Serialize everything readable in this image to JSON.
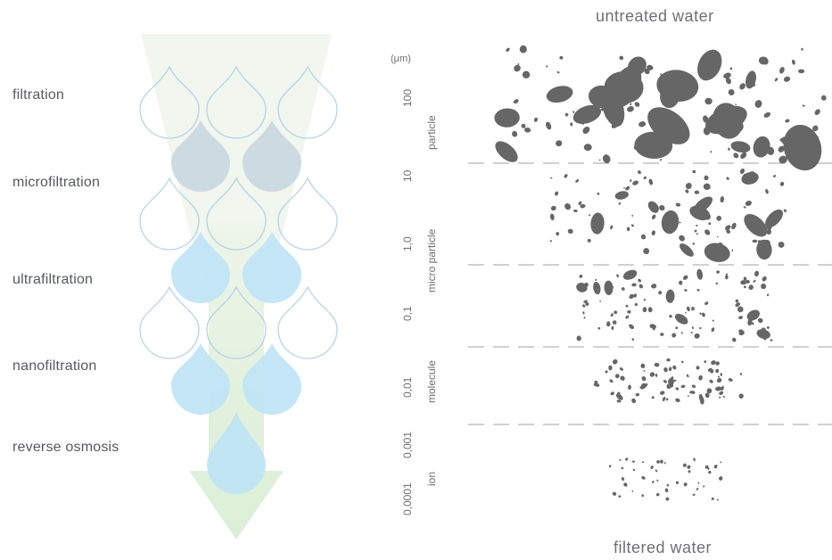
{
  "filtration_levels": [
    {
      "label": "filtration"
    },
    {
      "label": "microfiltration"
    },
    {
      "label": "ultrafiltration"
    },
    {
      "label": "nanofiltration"
    },
    {
      "label": "reverse osmosis"
    }
  ],
  "top_caption": "untreated water",
  "bottom_caption": "filtered water",
  "unit_label": "(μm)",
  "size_ticks": [
    "100",
    "10",
    "1,0",
    "0,1",
    "0,01",
    "0,001",
    "0,0001"
  ],
  "particle_classes": [
    "particle",
    "micro particle",
    "molecule",
    "ion"
  ],
  "colors": {
    "drop_outline": "#a9cde4",
    "drop_gray": "#c4d6de",
    "drop_blue": "#bfe3f6",
    "arrow_fill": "#e6f2dc",
    "particle": "#666666",
    "divider": "#b5b5b5",
    "text": "#555a60"
  }
}
